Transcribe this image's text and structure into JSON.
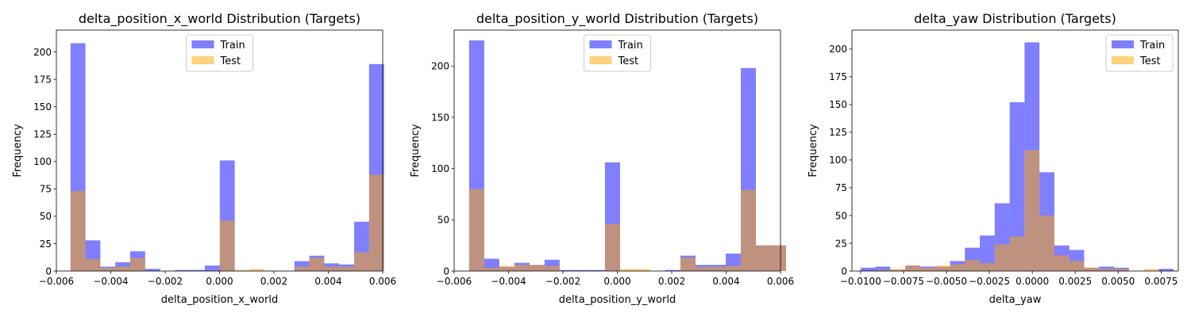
{
  "colors": {
    "train": "#0000ff",
    "test": "#ffa500",
    "train_opacity": 0.5,
    "test_opacity": 0.5
  },
  "chart_data": [
    {
      "type": "bar",
      "title": "delta_position_x_world Distribution (Targets)",
      "xlabel": "delta_position_x_world",
      "ylabel": "Frequency",
      "xlim": [
        -0.006,
        0.006
      ],
      "ylim": [
        0,
        220
      ],
      "xticks": [
        -0.006,
        -0.004,
        -0.002,
        0.0,
        0.002,
        0.004,
        0.006
      ],
      "xtick_labels": [
        "−0.006",
        "−0.004",
        "−0.002",
        "0.000",
        "0.002",
        "0.004",
        "0.006"
      ],
      "yticks": [
        0,
        25,
        50,
        75,
        100,
        125,
        150,
        175,
        200
      ],
      "ytick_labels": [
        "0",
        "25",
        "50",
        "75",
        "100",
        "125",
        "150",
        "175",
        "200"
      ],
      "legend": {
        "position": "top-center",
        "entries": [
          "Train",
          "Test"
        ]
      },
      "series": [
        {
          "name": "Train",
          "bin_start": -0.00548,
          "bin_width": 0.000549,
          "values": [
            208,
            28,
            4,
            8,
            18,
            2,
            0,
            1,
            1,
            5,
            101,
            0,
            0,
            0,
            0,
            9,
            14,
            7,
            6,
            45,
            189
          ]
        },
        {
          "name": "Test",
          "bin_start": -0.00548,
          "bin_width": 0.000549,
          "values": [
            73,
            11,
            3,
            4,
            12,
            0,
            0,
            0,
            0,
            0,
            46,
            1,
            2,
            0,
            0,
            4,
            12,
            4,
            4,
            17,
            88
          ]
        }
      ]
    },
    {
      "type": "bar",
      "title": "delta_position_y_world Distribution (Targets)",
      "xlabel": "delta_position_y_world",
      "ylabel": "Frequency",
      "xlim": [
        -0.006,
        0.006
      ],
      "ylim": [
        0,
        235
      ],
      "xticks": [
        -0.006,
        -0.004,
        -0.002,
        0.0,
        0.002,
        0.004,
        0.006
      ],
      "xtick_labels": [
        "−0.006",
        "−0.004",
        "−0.002",
        "0.000",
        "0.002",
        "0.004",
        "0.006"
      ],
      "yticks": [
        0,
        50,
        100,
        150,
        200
      ],
      "ytick_labels": [
        "0",
        "50",
        "100",
        "150",
        "200"
      ],
      "legend": {
        "position": "top-center",
        "entries": [
          "Train",
          "Test"
        ]
      },
      "series": [
        {
          "name": "Train",
          "bin_start": -0.00545,
          "bin_width": 0.000555,
          "values": [
            225,
            12,
            4,
            8,
            6,
            11,
            1,
            1,
            1,
            106,
            0,
            0,
            0,
            1,
            15,
            6,
            6,
            17,
            198,
            25,
            25
          ]
        },
        {
          "name": "Test",
          "bin_start": -0.00545,
          "bin_width": 0.000555,
          "values": [
            80,
            3,
            5,
            6,
            6,
            5,
            0,
            0,
            0,
            46,
            2,
            2,
            0,
            0,
            13,
            4,
            4,
            5,
            79,
            25,
            25
          ]
        }
      ]
    },
    {
      "type": "bar",
      "title": "delta_yaw Distribution (Targets)",
      "xlabel": "delta_yaw",
      "ylabel": "Frequency",
      "xlim": [
        -0.0105,
        0.0085
      ],
      "ylim": [
        0,
        217
      ],
      "xticks": [
        -0.01,
        -0.0075,
        -0.005,
        -0.0025,
        0.0,
        0.0025,
        0.005,
        0.0075
      ],
      "xtick_labels": [
        "−0.0100",
        "−0.0075",
        "−0.0050",
        "−0.0025",
        "0.0000",
        "0.0025",
        "0.0050",
        "0.0075"
      ],
      "yticks": [
        0,
        25,
        50,
        75,
        100,
        125,
        150,
        175,
        200
      ],
      "ytick_labels": [
        "0",
        "25",
        "50",
        "75",
        "100",
        "125",
        "150",
        "175",
        "200"
      ],
      "legend": {
        "position": "top-right",
        "entries": [
          "Train",
          "Test"
        ]
      },
      "series": [
        {
          "name": "Train",
          "bin_start": -0.01,
          "bin_width": 0.000868,
          "values": [
            3,
            4,
            1,
            5,
            4,
            4,
            9,
            21,
            32,
            61,
            152,
            206,
            89,
            23,
            19,
            3,
            4,
            3,
            0,
            0,
            2
          ]
        },
        {
          "name": "Test",
          "bin_start": -0.01,
          "bin_width": 0.000868,
          "values": [
            0,
            1,
            2,
            5,
            3,
            5,
            6,
            10,
            7,
            24,
            31,
            109,
            50,
            14,
            9,
            3,
            2,
            2,
            0,
            2,
            0
          ]
        }
      ]
    }
  ]
}
